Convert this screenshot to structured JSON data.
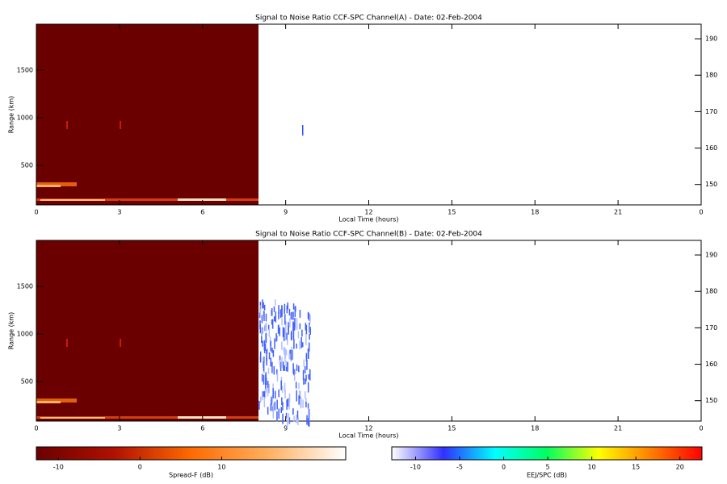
{
  "chart_data": [
    {
      "type": "heatmap",
      "title": "Signal to Noise Ratio CCF-SPC Channel(A) - Date: 02-Feb-2004",
      "xlabel": "Local Time (hours)",
      "ylabel": "Range (km)",
      "xlim": [
        0,
        24
      ],
      "xticks": [
        0,
        3,
        6,
        9,
        12,
        15,
        18,
        21,
        {
          "value": 24,
          "label": "0"
        }
      ],
      "ylim": [
        85,
        1983
      ],
      "yticks": [
        500,
        1000,
        1500
      ],
      "y2lim": [
        144.4,
        194
      ],
      "y2ticks": [
        150,
        160,
        170,
        180,
        190
      ]
    },
    {
      "type": "heatmap",
      "title": "Signal to Noise Ratio CCF-SPC Channel(B) - Date: 02-Feb-2004",
      "xlabel": "Local Time (hours)",
      "ylabel": "Range (km)",
      "xlim": [
        0,
        24
      ],
      "xticks": [
        0,
        3,
        6,
        9,
        12,
        15,
        18,
        21,
        {
          "value": 24,
          "label": "0"
        }
      ],
      "ylim": [
        85,
        1983
      ],
      "yticks": [
        500,
        1000,
        1500
      ],
      "y2lim": [
        144.4,
        194
      ],
      "y2ticks": [
        150,
        160,
        170,
        180,
        190
      ]
    }
  ],
  "colorbars": [
    {
      "label": "Spread-F (dB)",
      "lim": [
        -12.7,
        25.2
      ],
      "ticks": [
        -10,
        0,
        10
      ],
      "colors": [
        "#6b0000",
        "#b01000",
        "#ff6a00",
        "#ffb060",
        "#ffffff"
      ]
    },
    {
      "label": "EEJ/SPC (dB)",
      "lim": [
        -12.7,
        22.5
      ],
      "ticks": [
        -10,
        -5,
        0,
        5,
        10,
        15,
        20
      ],
      "colors": [
        "#ffffff",
        "#3030ff",
        "#00ffff",
        "#00ff60",
        "#ffff00",
        "#ff8000",
        "#ff0000"
      ]
    }
  ]
}
